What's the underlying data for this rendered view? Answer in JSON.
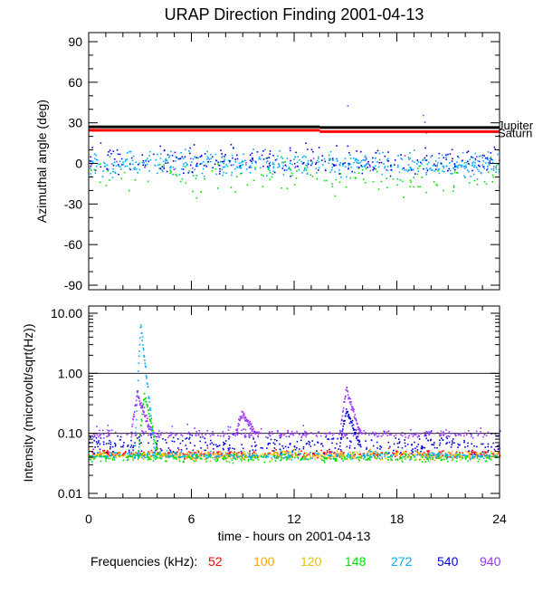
{
  "title": "URAP Direction Finding  2001-04-13",
  "legend": {
    "label": "Frequencies (kHz):",
    "items": [
      {
        "text": "52",
        "color": "#ff0000"
      },
      {
        "text": "100",
        "color": "#ffa500"
      },
      {
        "text": "120",
        "color": "#e6c200"
      },
      {
        "text": "148",
        "color": "#00e000"
      },
      {
        "text": "272",
        "color": "#00aaff"
      },
      {
        "text": "540",
        "color": "#0000dd"
      },
      {
        "text": "940",
        "color": "#9933ff"
      }
    ]
  },
  "chart_data": [
    {
      "type": "scatter",
      "panel": "azimuth",
      "title": "URAP Direction Finding  2001-04-13",
      "ylabel": "Azimuthal angle (deg)",
      "xlim": [
        0,
        24
      ],
      "ylim": [
        -90,
        90
      ],
      "y_ticks": [
        "90",
        "60",
        "30",
        "0",
        "-30",
        "-60",
        "-90"
      ],
      "y_tick_values": [
        90,
        60,
        30,
        0,
        -30,
        -60,
        -90
      ],
      "reference_lines": [
        {
          "name": "Jupiter",
          "color": "#000000",
          "segments": [
            [
              0,
              13.5,
              27
            ],
            [
              13.5,
              24,
              26.5
            ]
          ]
        },
        {
          "name": "Saturn",
          "color": "#ff0000",
          "segments": [
            [
              0,
              13.5,
              24.5
            ],
            [
              13.5,
              24,
              23.5
            ]
          ]
        }
      ],
      "series": [
        {
          "name": "148",
          "color": "#00e000",
          "mean": -10,
          "spread": 9,
          "count": 140
        },
        {
          "name": "272",
          "color": "#00aaff",
          "mean": 0,
          "spread": 6,
          "count": 520
        },
        {
          "name": "540",
          "color": "#0000dd",
          "mean": 3,
          "spread": 7,
          "count": 240
        },
        {
          "name": "940",
          "color": "#9933ff",
          "mean": 0,
          "spread": 5,
          "count": 20
        }
      ],
      "notable_points": [
        {
          "x": 15.1,
          "y": 43,
          "color": "#9933ff"
        },
        {
          "x": 19.5,
          "y": 36,
          "color": "#9933ff"
        },
        {
          "x": 19.6,
          "y": 31,
          "color": "#9933ff"
        },
        {
          "x": 19.6,
          "y": 27,
          "color": "#9933ff"
        },
        {
          "x": 19.7,
          "y": 23,
          "color": "#9933ff"
        }
      ]
    },
    {
      "type": "scatter",
      "panel": "intensity",
      "ylabel": "Intensity (microvolt/sqrt(Hz))",
      "xlabel": "time - hours on 2001-04-13",
      "xlim": [
        0,
        24
      ],
      "ylim": [
        0.01,
        10
      ],
      "y_scale": "log",
      "x_ticks": [
        "0",
        "6",
        "12",
        "18",
        "24"
      ],
      "x_tick_values": [
        0,
        6,
        12,
        18,
        24
      ],
      "y_ticks": [
        "10.00",
        "1.00",
        "0.10",
        "0.01"
      ],
      "y_tick_values": [
        10,
        1,
        0.1,
        0.01
      ],
      "series": [
        {
          "name": "52",
          "color": "#ff0000",
          "baseline": 0.047
        },
        {
          "name": "100",
          "color": "#ffa500",
          "baseline": 0.043
        },
        {
          "name": "120",
          "color": "#e6c200",
          "baseline": 0.045
        },
        {
          "name": "148",
          "color": "#00e000",
          "baseline": 0.04
        },
        {
          "name": "272",
          "color": "#00aaff",
          "baseline": 0.044
        },
        {
          "name": "540",
          "color": "#0000dd",
          "baseline": 0.065
        },
        {
          "name": "940",
          "color": "#9933ff",
          "baseline": 0.1
        }
      ],
      "bursts": [
        {
          "series": "272",
          "peak_x": 3.0,
          "peak": 7.0
        },
        {
          "series": "148",
          "peak_x": 3.2,
          "peak": 0.5
        },
        {
          "series": "940",
          "peak_x": 2.8,
          "peak": 0.5
        },
        {
          "series": "940",
          "peak_x": 15.0,
          "peak": 0.6
        },
        {
          "series": "540",
          "peak_x": 15.0,
          "peak": 0.25
        },
        {
          "series": "940",
          "peak_x": 8.9,
          "peak": 0.22
        }
      ]
    }
  ]
}
